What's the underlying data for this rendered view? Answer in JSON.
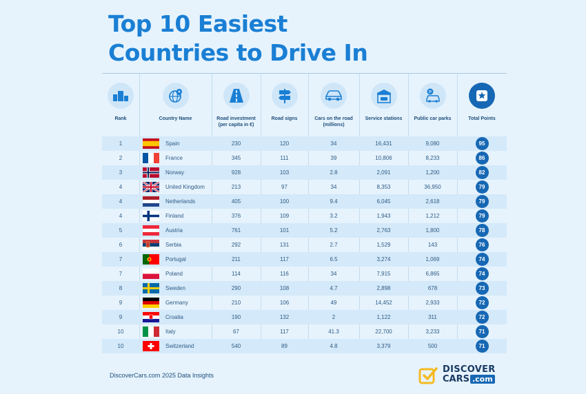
{
  "title_line1": "Top 10 Easiest",
  "title_line2": "Countries to Drive In",
  "headers": {
    "rank": "Rank",
    "country": "Country Name",
    "investment_l1": "Road investment",
    "investment_l2": "(per capita in €)",
    "signs": "Road signs",
    "cars_l1": "Cars on the road",
    "cars_l2": "(millions)",
    "stations": "Service stations",
    "parks": "Public car parks",
    "points": "Total Points"
  },
  "icons": [
    "podium-icon",
    "globe-pin-icon",
    "road-icon",
    "signpost-icon",
    "car-icon",
    "service-station-icon",
    "parking-car-icon",
    "star-badge-icon"
  ],
  "colors": {
    "title": "#1a7fd4",
    "accent": "#1768b4",
    "background": "#e6f3fd",
    "logo_yellow": "#f5b921"
  },
  "chart_data": {
    "type": "table",
    "columns": [
      "Rank",
      "Country Name",
      "Road investment (per capita in €)",
      "Road signs",
      "Cars on the road (millions)",
      "Service stations",
      "Public car parks",
      "Total Points"
    ],
    "rows": [
      {
        "rank": "1",
        "country": "Spain",
        "flag": "es",
        "investment": "230",
        "signs": "120",
        "cars": "34",
        "stations": "16,431",
        "parks": "9,080",
        "points": "95"
      },
      {
        "rank": "2",
        "country": "France",
        "flag": "fr",
        "investment": "345",
        "signs": "111",
        "cars": "39",
        "stations": "10,806",
        "parks": "8,233",
        "points": "86"
      },
      {
        "rank": "3",
        "country": "Norway",
        "flag": "no",
        "investment": "928",
        "signs": "103",
        "cars": "2.8",
        "stations": "2,091",
        "parks": "1,200",
        "points": "82"
      },
      {
        "rank": "4",
        "country": "United Kingdom",
        "flag": "gb",
        "investment": "213",
        "signs": "97",
        "cars": "34",
        "stations": "8,353",
        "parks": "36,950",
        "points": "79"
      },
      {
        "rank": "4",
        "country": "Netherlands",
        "flag": "nl",
        "investment": "405",
        "signs": "100",
        "cars": "9.4",
        "stations": "6,045",
        "parks": "2,618",
        "points": "79"
      },
      {
        "rank": "4",
        "country": "Finland",
        "flag": "fi",
        "investment": "376",
        "signs": "109",
        "cars": "3.2",
        "stations": "1,943",
        "parks": "1,212",
        "points": "79"
      },
      {
        "rank": "5",
        "country": "Austria",
        "flag": "at",
        "investment": "761",
        "signs": "101",
        "cars": "5.2",
        "stations": "2,763",
        "parks": "1,800",
        "points": "78"
      },
      {
        "rank": "6",
        "country": "Serbia",
        "flag": "rs",
        "investment": "292",
        "signs": "131",
        "cars": "2.7",
        "stations": "1,529",
        "parks": "143",
        "points": "76"
      },
      {
        "rank": "7",
        "country": "Portugal",
        "flag": "pt",
        "investment": "211",
        "signs": "117",
        "cars": "6.5",
        "stations": "3,274",
        "parks": "1,069",
        "points": "74"
      },
      {
        "rank": "7",
        "country": "Poland",
        "flag": "pl",
        "investment": "114",
        "signs": "116",
        "cars": "34",
        "stations": "7,915",
        "parks": "6,865",
        "points": "74"
      },
      {
        "rank": "8",
        "country": "Sweden",
        "flag": "se",
        "investment": "290",
        "signs": "108",
        "cars": "4.7",
        "stations": "2,898",
        "parks": "678",
        "points": "73"
      },
      {
        "rank": "9",
        "country": "Germany",
        "flag": "de",
        "investment": "210",
        "signs": "106",
        "cars": "49",
        "stations": "14,452",
        "parks": "2,933",
        "points": "72"
      },
      {
        "rank": "9",
        "country": "Croatia",
        "flag": "hr",
        "investment": "190",
        "signs": "132",
        "cars": "2",
        "stations": "1,122",
        "parks": "311",
        "points": "72"
      },
      {
        "rank": "10",
        "country": "Italy",
        "flag": "it",
        "investment": "67",
        "signs": "117",
        "cars": "41.3",
        "stations": "22,700",
        "parks": "3,233",
        "points": "71"
      },
      {
        "rank": "10",
        "country": "Switzerland",
        "flag": "ch",
        "investment": "540",
        "signs": "89",
        "cars": "4.8",
        "stations": "3,379",
        "parks": "500",
        "points": "71"
      }
    ]
  },
  "footer": "DiscoverCars.com 2025 Data Insights",
  "logo": {
    "line1": "DISCOVER",
    "line2": "CARS",
    ".com": ".com",
    "com": ".com"
  }
}
